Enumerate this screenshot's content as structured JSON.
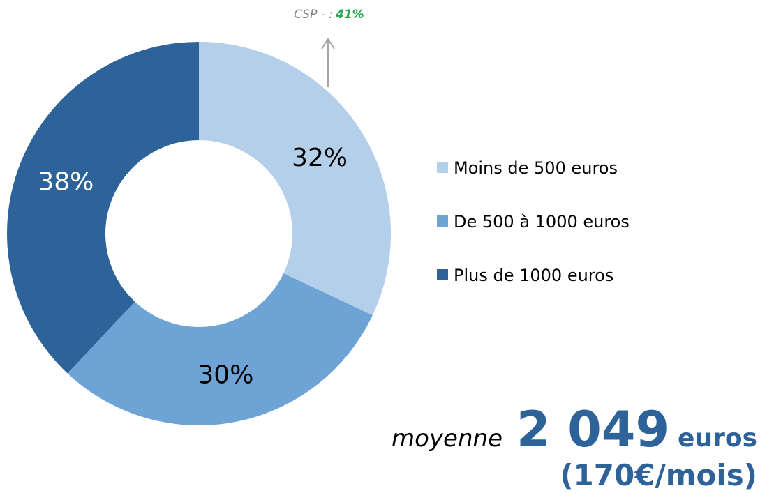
{
  "chart_data": {
    "type": "donut",
    "categories": [
      "Moins de 500 euros",
      "De 500 à 1000 euros",
      "Plus de 1000 euros"
    ],
    "values": [
      32,
      30,
      38
    ],
    "value_labels": [
      "32%",
      "30%",
      "38%"
    ],
    "colors": [
      "#b4cfe9",
      "#6ea3d6",
      "#2d6399"
    ],
    "label_colors": [
      "#000000",
      "#000000",
      "#ffffff"
    ],
    "legend": "right",
    "annotation": {
      "text": "CSP - :",
      "value": 41,
      "value_label": "41%"
    },
    "summary": {
      "prefix": "moyenne",
      "amount": "2 049",
      "unit": "euros",
      "monthly": "(170€/mois)"
    }
  }
}
